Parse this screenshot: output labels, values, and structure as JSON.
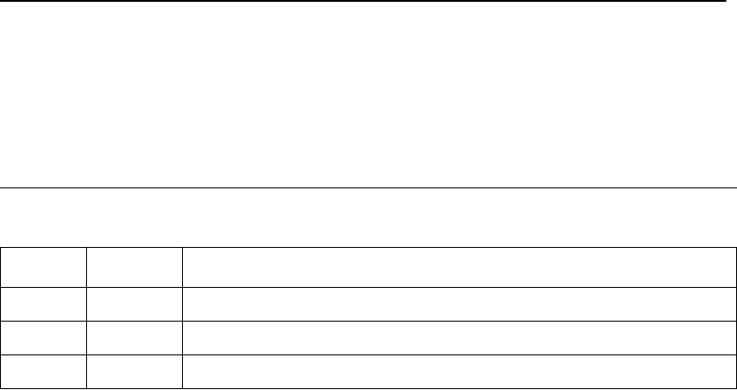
{
  "table": {
    "rows": 4,
    "columns": 3,
    "cells": [
      [
        "",
        "",
        ""
      ],
      [
        "",
        "",
        ""
      ],
      [
        "",
        "",
        ""
      ],
      [
        "",
        "",
        ""
      ]
    ]
  },
  "colors": {
    "text": "#000000"
  }
}
